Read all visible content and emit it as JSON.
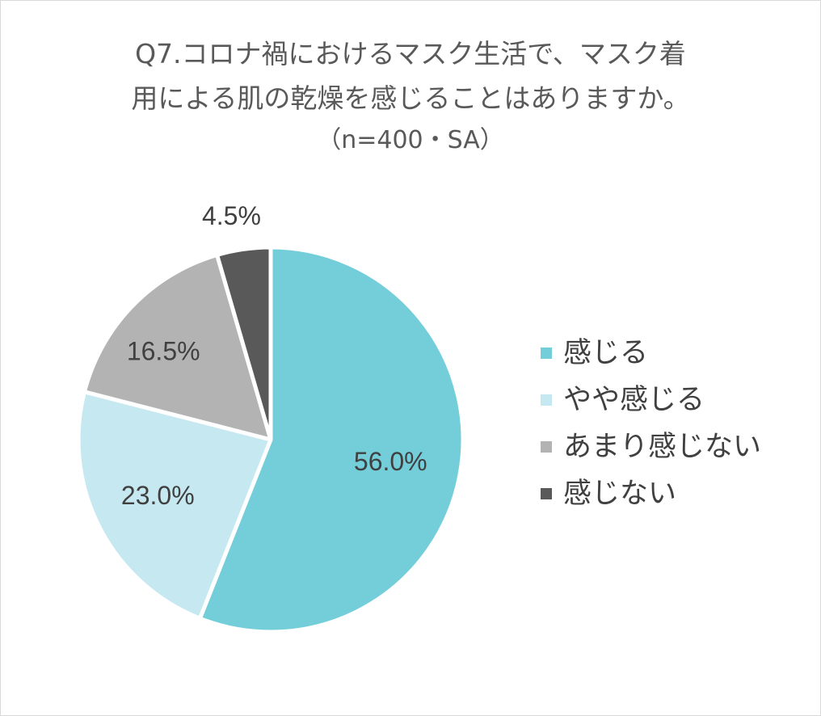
{
  "chart_data": {
    "type": "pie",
    "title_lines": [
      "Q7.コロナ禍におけるマスク生活で、マスク着",
      "用による肌の乾燥を感じることはありますか。",
      "（n=400・SA）"
    ],
    "unit": "%",
    "categories": [
      "感じる",
      "やや感じる",
      "あまり感じない",
      "感じない"
    ],
    "values": [
      56.0,
      23.0,
      16.5,
      4.5
    ],
    "data_labels": [
      "56.0%",
      "23.0%",
      "16.5%",
      "4.5%"
    ],
    "colors": [
      "#74ceda",
      "#c6e8f0",
      "#b3b3b3",
      "#595959"
    ],
    "legend_placement": "right",
    "start_angle": "12 o'clock",
    "direction": "clockwise"
  }
}
